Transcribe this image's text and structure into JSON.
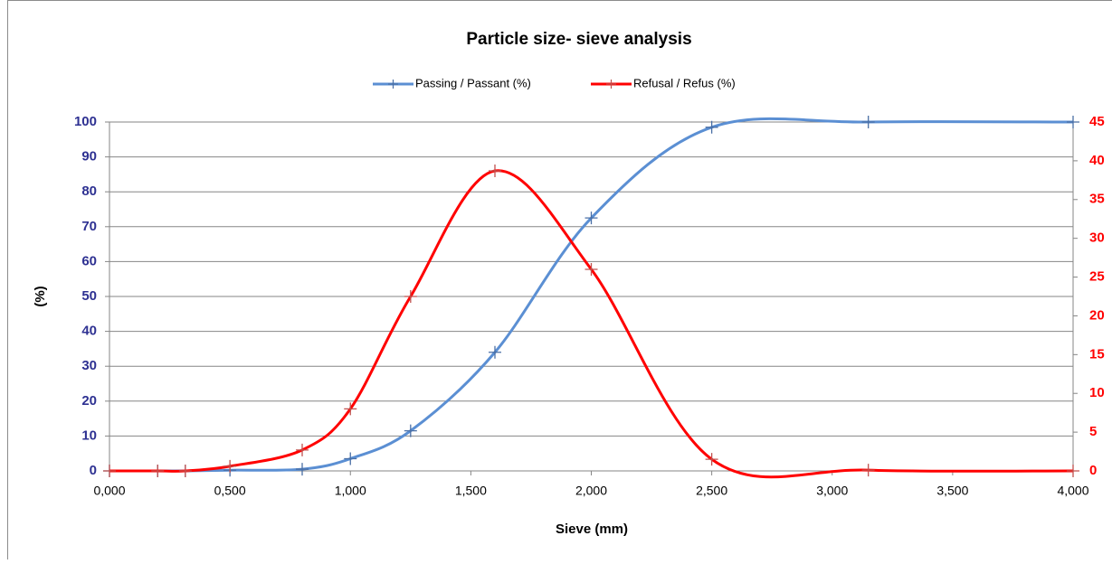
{
  "chart_data": {
    "type": "line",
    "title": "Particle size- sieve analysis",
    "x_label": "Sieve (mm)",
    "y_label": "(%)",
    "x": [
      0,
      0.2,
      0.315,
      0.5,
      0.8,
      1.0,
      1.25,
      1.6,
      2.0,
      2.5,
      3.15,
      4.0
    ],
    "series": [
      {
        "name": "Passing / Passant (%)",
        "color": "#5b8fd3",
        "values": [
          0,
          0,
          0,
          0.2,
          0.5,
          3.5,
          11.5,
          34,
          72.5,
          98.5,
          100,
          100
        ]
      },
      {
        "name": "Refusal / Refus (%)",
        "color": "#ff0000",
        "axis": "y2",
        "values": [
          0,
          0,
          0,
          0.6,
          2.7,
          8,
          22.5,
          38.7,
          26,
          1.5,
          0.1,
          0
        ]
      }
    ],
    "xlim": [
      0,
      4
    ],
    "xticks": [
      {
        "value": 0,
        "label": "0,000"
      },
      {
        "value": 0.5,
        "label": "0,500"
      },
      {
        "value": 1,
        "label": "1,000"
      },
      {
        "value": 1.5,
        "label": "1,500"
      },
      {
        "value": 2,
        "label": "2,000"
      },
      {
        "value": 2.5,
        "label": "2,500"
      },
      {
        "value": 3,
        "label": "3,000"
      },
      {
        "value": 3.5,
        "label": "3,500"
      },
      {
        "value": 4,
        "label": "4,000"
      }
    ],
    "ylim": [
      0,
      100
    ],
    "yticks": [
      0,
      10,
      20,
      30,
      40,
      50,
      60,
      70,
      80,
      90,
      100
    ],
    "y2lim": [
      0,
      45
    ],
    "y2ticks": [
      0,
      5,
      10,
      15,
      20,
      25,
      30,
      35,
      40,
      45
    ],
    "grid": true,
    "legend": "top",
    "smooth": true
  }
}
